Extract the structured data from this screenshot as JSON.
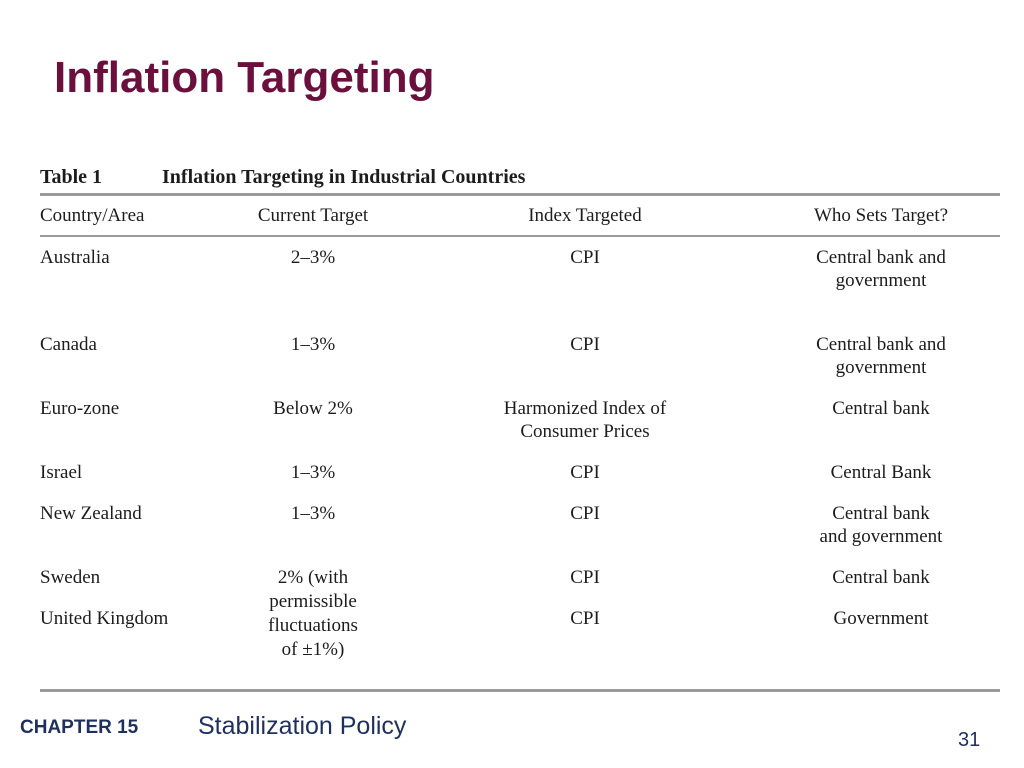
{
  "slide": {
    "title": "Inflation Targeting"
  },
  "table": {
    "number": "Table 1",
    "caption": "Inflation Targeting in Industrial Countries",
    "headers": {
      "country": "Country/Area",
      "target": "Current Target",
      "index": "Index Targeted",
      "setter": "Who Sets Target?"
    },
    "rows": [
      {
        "country": "Australia",
        "target": [
          "2–3%"
        ],
        "index": [
          "CPI"
        ],
        "setter": [
          "Central bank and",
          "government"
        ]
      },
      {
        "country": "Canada",
        "target": [
          "1–3%"
        ],
        "index": [
          "CPI"
        ],
        "setter": [
          "Central bank and",
          "government"
        ]
      },
      {
        "country": "Euro-zone",
        "target": [
          "Below 2%"
        ],
        "index": [
          "Harmonized Index of",
          "Consumer Prices"
        ],
        "setter": [
          "Central bank"
        ]
      },
      {
        "country": "Israel",
        "target": [
          "1–3%"
        ],
        "index": [
          "CPI"
        ],
        "setter": [
          "Central Bank"
        ]
      },
      {
        "country": "New Zealand",
        "target": [
          "1–3%"
        ],
        "index": [
          "CPI"
        ],
        "setter": [
          "Central bank",
          "and government"
        ]
      },
      {
        "country": "Sweden",
        "target": [
          "2% (with",
          "permissible",
          "fluctuations",
          "of ±1%)"
        ],
        "index": [
          "CPI"
        ],
        "setter": [
          "Central bank"
        ]
      },
      {
        "country": "United Kingdom",
        "target": [],
        "index": [
          "CPI"
        ],
        "setter": [
          "Government"
        ]
      }
    ]
  },
  "footer": {
    "chapter": "CHAPTER 15",
    "subject": "Stabilization Policy",
    "page_number": "31"
  },
  "colors": {
    "title": "#6b0f3d",
    "footer_text": "#1f2f5e",
    "rule": "#9a9a9a"
  }
}
